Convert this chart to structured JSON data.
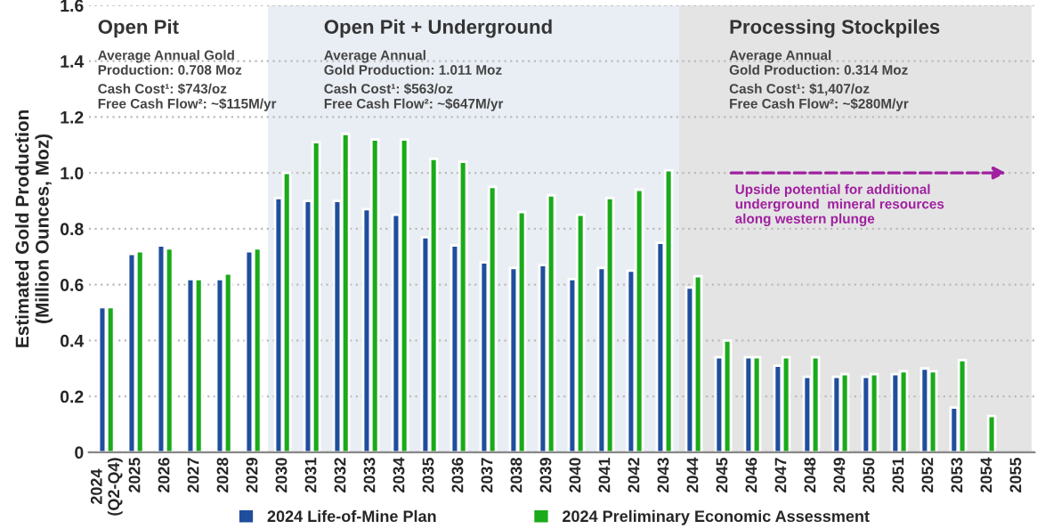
{
  "chart_data": {
    "type": "bar",
    "ylabel": "Estimated Gold Production\n(Million Ounces, Moz)",
    "categories": [
      "2024\n(Q2-Q4)",
      "2025",
      "2026",
      "2027",
      "2028",
      "2029",
      "2030",
      "2031",
      "2032",
      "2033",
      "2034",
      "2035",
      "2036",
      "2037",
      "2038",
      "2039",
      "2040",
      "2041",
      "2042",
      "2043",
      "2044",
      "2045",
      "2046",
      "2047",
      "2048",
      "2049",
      "2050",
      "2051",
      "2052",
      "2053",
      "2054",
      "2055"
    ],
    "series": [
      {
        "name": "2024 Life-of-Mine Plan",
        "color": "#1f4e9c",
        "values": [
          0.52,
          0.71,
          0.74,
          0.62,
          0.62,
          0.72,
          0.91,
          0.9,
          0.9,
          0.87,
          0.85,
          0.77,
          0.74,
          0.68,
          0.66,
          0.67,
          0.62,
          0.66,
          0.65,
          0.75,
          0.59,
          0.34,
          0.34,
          0.31,
          0.27,
          0.27,
          0.27,
          0.28,
          0.3,
          0.16,
          null,
          null
        ]
      },
      {
        "name": "2024 Preliminary Economic Assessment",
        "color": "#1aaa1a",
        "values": [
          0.52,
          0.72,
          0.73,
          0.62,
          0.64,
          0.73,
          1.0,
          1.11,
          1.14,
          1.12,
          1.12,
          1.05,
          1.04,
          0.95,
          0.86,
          0.92,
          0.85,
          0.91,
          0.94,
          1.01,
          0.63,
          0.4,
          0.34,
          0.34,
          0.34,
          0.28,
          0.28,
          0.29,
          0.29,
          0.33,
          0.13,
          null
        ]
      }
    ],
    "ylim": [
      0,
      1.6
    ],
    "yticks": [
      0,
      {
        "value": 0.2,
        "label": "0.2"
      },
      {
        "value": 0.4,
        "label": "0.4"
      },
      {
        "value": 0.6,
        "label": "0.6"
      },
      {
        "value": 0.8,
        "label": "0.8"
      },
      {
        "value": 1.0,
        "label": "1.0"
      },
      {
        "value": 1.2,
        "label": "1.2"
      },
      {
        "value": 1.4,
        "label": "1.4"
      },
      {
        "value": 1.6,
        "label": "1.6"
      }
    ],
    "bands": [
      {
        "axis": "x",
        "from": "2030",
        "to": "2043",
        "label": "Open Pit + Underground",
        "color": "#e9eef4"
      },
      {
        "axis": "x",
        "from": "2044",
        "to": "2055",
        "label": "Processing Stockpiles",
        "color": "#e4e4e4"
      }
    ],
    "annotations": [
      "Open Pit",
      "Average Annual Gold\nProduction: 0.708 Moz",
      "Cash Cost¹: $743/oz\nFree Cash Flow²: ~$115M/yr",
      "Average Annual\nGold Production: 1.011 Moz",
      "Cash Cost¹: $563/oz\nFree Cash Flow²: ~$647M/yr",
      "Average Annual\nGold Production: 0.314 Moz",
      "Cash Cost¹: $1,407/oz\nFree Cash Flow²: ~$280M/yr",
      "Upside potential for additional\nunderground  mineral resources\nalong western plunge"
    ],
    "grid": "y",
    "legend": "bottom"
  }
}
